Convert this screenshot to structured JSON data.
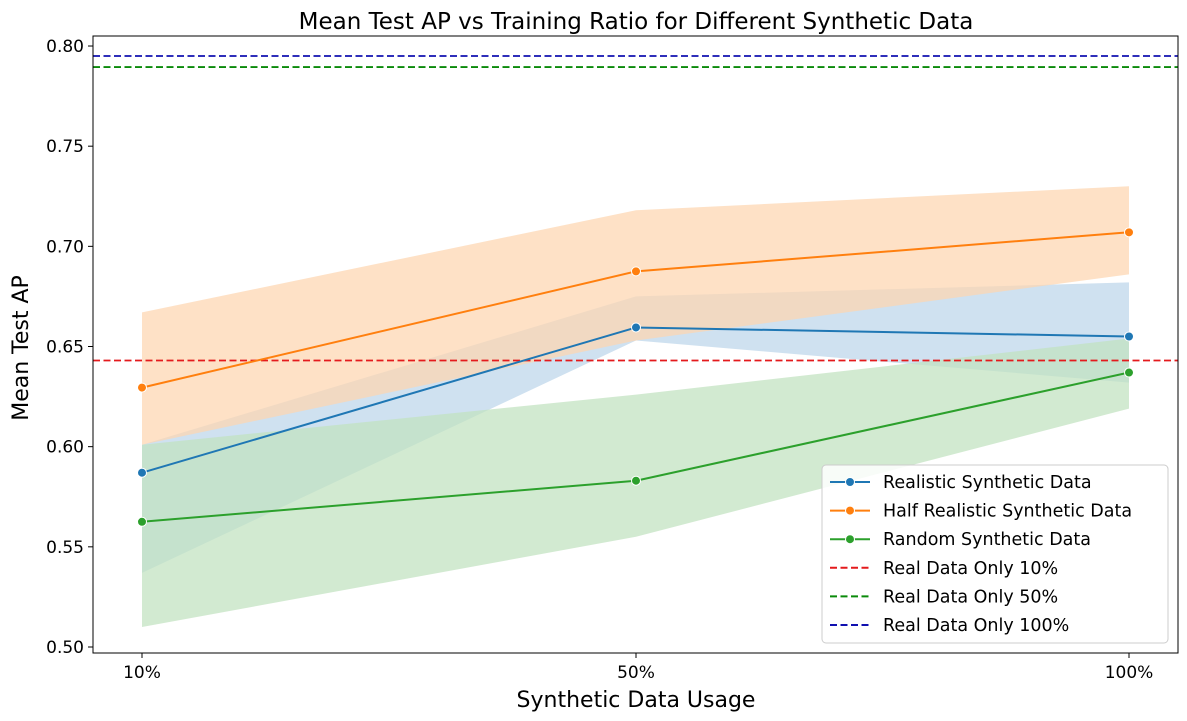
{
  "chart_data": {
    "type": "line",
    "title": "Mean Test AP vs Training Ratio for Different Synthetic Data",
    "xlabel": "Synthetic Data Usage",
    "ylabel": "Mean Test AP",
    "categories": [
      "10%",
      "50%",
      "100%"
    ],
    "ylim": [
      0.497,
      0.805
    ],
    "yticks": [
      0.5,
      0.55,
      0.6,
      0.65,
      0.7,
      0.75,
      0.8
    ],
    "ytick_labels": [
      "0.50",
      "0.55",
      "0.60",
      "0.65",
      "0.70",
      "0.75",
      "0.80"
    ],
    "grid": false,
    "legend_position": "lower-right",
    "series": [
      {
        "name": "Realistic Synthetic Data",
        "color": "#1f77b4",
        "band_color": "#bcd6ea",
        "values": [
          0.587,
          0.6595,
          0.655
        ],
        "band_lower": [
          0.537,
          0.653,
          0.632
        ],
        "band_upper": [
          0.601,
          0.675,
          0.682
        ]
      },
      {
        "name": "Half Realistic Synthetic Data",
        "color": "#ff7f0e",
        "band_color": "#fdd5b0",
        "values": [
          0.6295,
          0.6875,
          0.707
        ],
        "band_lower": [
          0.601,
          0.653,
          0.686
        ],
        "band_upper": [
          0.667,
          0.718,
          0.73
        ]
      },
      {
        "name": "Random Synthetic Data",
        "color": "#2ca02c",
        "band_color": "#c0e2bf",
        "values": [
          0.5625,
          0.583,
          0.637
        ],
        "band_lower": [
          0.51,
          0.555,
          0.619
        ],
        "band_upper": [
          0.601,
          0.626,
          0.654
        ]
      }
    ],
    "reference_lines": [
      {
        "name": "Real Data Only 10%",
        "color": "#e41a1c",
        "value": 0.643
      },
      {
        "name": "Real Data Only 50%",
        "color": "#0a8a0a",
        "value": 0.7895
      },
      {
        "name": "Real Data Only 100%",
        "color": "#1010b0",
        "value": 0.795
      }
    ]
  }
}
